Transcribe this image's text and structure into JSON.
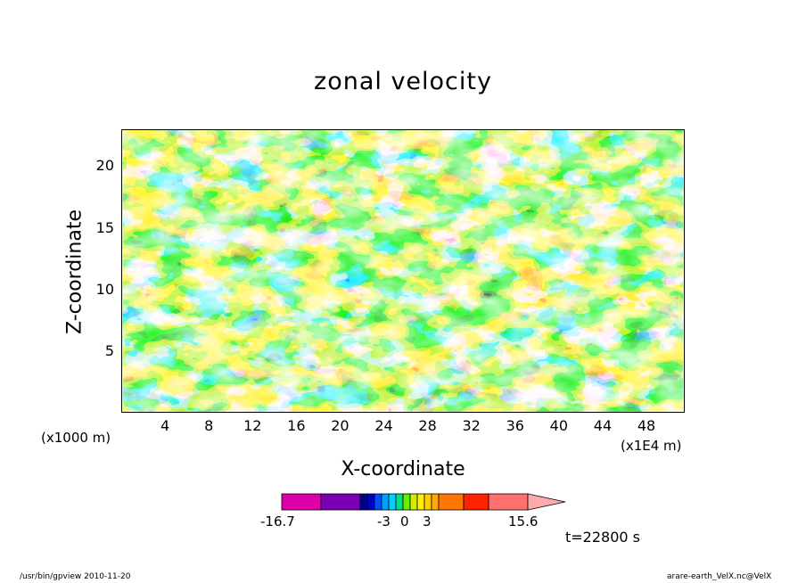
{
  "chart_data": {
    "type": "heatmap",
    "title": "zonal velocity",
    "xlabel": "X-coordinate",
    "ylabel": "Z-coordinate",
    "x_unit_left": "(x1000 m)",
    "x_unit_right": "(x1E4 m)",
    "x_ticks": [
      "4",
      "8",
      "12",
      "16",
      "20",
      "24",
      "28",
      "32",
      "36",
      "40",
      "44",
      "48"
    ],
    "y_ticks": [
      "5",
      "10",
      "15",
      "20"
    ],
    "xlim": [
      0,
      51.5
    ],
    "ylim": [
      0,
      23
    ],
    "colorbar": {
      "labels": [
        "-16.7",
        "-3",
        "0",
        "3",
        "15.6"
      ],
      "range": [
        -16.7,
        15.6
      ],
      "colors": [
        "#dd00aa",
        "#7a00b4",
        "#00008c",
        "#0000c8",
        "#0050ff",
        "#00a0ff",
        "#00d0ff",
        "#00dd88",
        "#66ee00",
        "#ccee00",
        "#ffee00",
        "#ffcc00",
        "#ffaa00",
        "#ff7700",
        "#ff2200",
        "#ff7070",
        "#ffaaaa"
      ]
    }
  },
  "time_label": "t=22800 s",
  "footer": {
    "left": "/usr/bin/gpview   2010-11-20",
    "right": "arare-earth_VelX.nc@VelX"
  }
}
